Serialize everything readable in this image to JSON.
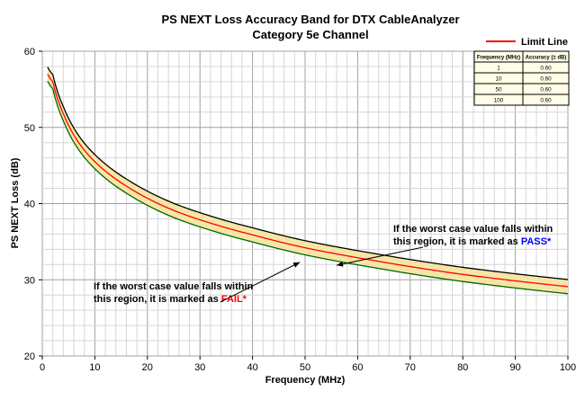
{
  "chart_data": {
    "type": "line",
    "title": "PS NEXT Loss Accuracy Band for DTX CableAnalyzer",
    "subtitle": "Category 5e Channel",
    "xlabel": "Frequency (MHz)",
    "ylabel": "PS NEXT Loss (dB)",
    "xlim": [
      0,
      100
    ],
    "ylim": [
      20,
      60
    ],
    "x_ticks": [
      "0",
      "10",
      "20",
      "30",
      "40",
      "50",
      "60",
      "70",
      "80",
      "90",
      "100"
    ],
    "y_ticks": [
      "20",
      "30",
      "40",
      "50",
      "60"
    ],
    "grid": true,
    "legend": {
      "position": "top-right",
      "entries": [
        "Limit Line"
      ]
    },
    "series": [
      {
        "name": "Limit Line",
        "color": "#ff0000",
        "x": [
          1,
          2,
          4,
          8,
          10,
          16,
          20,
          25,
          31.25,
          40,
          50,
          62.5,
          80,
          100
        ],
        "y": [
          57.0,
          56.0,
          51.8,
          47.0,
          45.5,
          42.3,
          40.7,
          39.1,
          37.6,
          35.9,
          34.2,
          32.6,
          30.7,
          29.1
        ]
      }
    ],
    "band": {
      "offset_db": 0.6,
      "colors": {
        "inner": "#f5e6a6",
        "upper": "#000000",
        "lower": "#006600"
      }
    },
    "table": {
      "headers": [
        "Frequency (MHz)",
        "Accuracy (± dB)"
      ],
      "rows": [
        [
          "1",
          "0.60"
        ],
        [
          "10",
          "0.60"
        ],
        [
          "50",
          "0.60"
        ],
        [
          "100",
          "0.60"
        ]
      ]
    },
    "annotations": [
      {
        "lines": [
          "If the worst case value falls within",
          "this region, it is marked as"
        ],
        "keyword": "PASS",
        "suffix": "*",
        "keyword_color": "#0000ff",
        "target_x": 56,
        "target_y": 31.9
      },
      {
        "lines": [
          "If the worst case value falls within",
          "this region, it is marked as"
        ],
        "keyword": "FAIL",
        "suffix": "*",
        "keyword_color": "#ff0000",
        "target_x": 49,
        "target_y": 32.3
      }
    ]
  }
}
